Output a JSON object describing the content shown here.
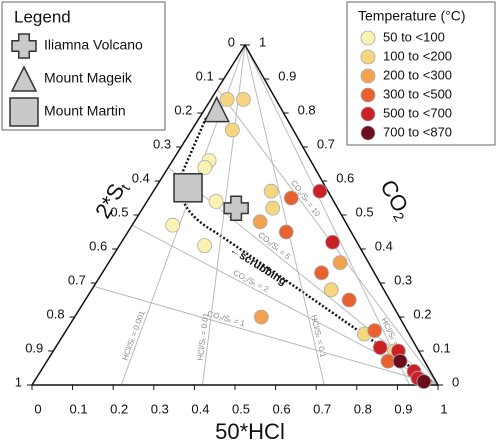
{
  "chart_data": {
    "type": "ternary",
    "axes": {
      "bottom": {
        "label": "50*HCl",
        "ticks": [
          0,
          0.1,
          0.2,
          0.3,
          0.4,
          0.5,
          0.6,
          0.7,
          0.8,
          0.9,
          1
        ]
      },
      "left": {
        "label": "2*S",
        "label_sub": "t",
        "ticks": [
          0,
          0.1,
          0.2,
          0.3,
          0.4,
          0.5,
          0.6,
          0.7,
          0.8,
          0.9,
          1
        ]
      },
      "right": {
        "label": "CO",
        "label_sub": "2",
        "ticks": [
          0,
          0.1,
          0.2,
          0.3,
          0.4,
          0.5,
          0.6,
          0.7,
          0.8,
          0.9,
          1
        ]
      }
    },
    "legend_title": "Temperature (°C)",
    "series": [
      {
        "name": "50 to <100",
        "color": "#fbf3b4",
        "hcl": [
          0.09,
          0.09,
          0.1,
          0.17,
          0.1,
          0.21
        ],
        "co2": [
          0.66,
          0.64,
          0.57,
          0.54,
          0.47,
          0.41
        ]
      },
      {
        "name": "100 to <200",
        "color": "#f6d67e",
        "hcl": [
          0.04,
          0.1,
          0.08,
          0.29,
          0.32,
          0.59,
          0.74,
          0.84
        ],
        "co2": [
          0.84,
          0.75,
          0.84,
          0.57,
          0.52,
          0.28,
          0.15,
          0.1
        ]
      },
      {
        "name": "200 to <300",
        "color": "#f3a24f",
        "hcl": [
          0.31,
          0.46,
          0.57
        ],
        "co2": [
          0.48,
          0.2,
          0.36
        ]
      },
      {
        "name": "300 to <500",
        "color": "#e8612f",
        "hcl": [
          0.35,
          0.39,
          0.54,
          0.65,
          0.76,
          0.84
        ],
        "co2": [
          0.55,
          0.45,
          0.33,
          0.25,
          0.16,
          0.07
        ]
      },
      {
        "name": "500 to <700",
        "color": "#cc1f26",
        "hcl": [
          0.41,
          0.52,
          0.8,
          0.85,
          0.92,
          0.94
        ],
        "co2": [
          0.57,
          0.42,
          0.11,
          0.1,
          0.04,
          0.02
        ]
      },
      {
        "name": "700 to <870",
        "color": "#6b0d1c",
        "hcl": [
          0.87,
          0.96
        ],
        "co2": [
          0.07,
          0.01
        ]
      }
    ],
    "volcano_legend": {
      "title": "Legend",
      "items": [
        {
          "name": "Iliamna Volcano",
          "marker": "cross",
          "hcl": 0.23,
          "co2": 0.52
        },
        {
          "name": "Mount Mageik",
          "marker": "triangle",
          "hcl": 0.03,
          "co2": 0.81
        },
        {
          "name": "Mount Martin",
          "marker": "square",
          "hcl": 0.08,
          "co2": 0.58
        }
      ]
    },
    "reference_lines": [
      {
        "label": "CO₂/Sₜ = 10",
        "co2": 0.87
      },
      {
        "label": "CO₂/Sₜ = 5",
        "co2": 0.64
      },
      {
        "label": "CO₂/Sₜ = 2",
        "co2": 0.47
      },
      {
        "label": "CO₂/Sₜ = 1",
        "co2": 0.29
      },
      {
        "label": "HCl/Sₜ = 0.001",
        "hcl": 0.22
      },
      {
        "label": "HCl/Sₜ = 0.01",
        "hcl": 0.42
      },
      {
        "label": "HCl/Sₜ = 0.1",
        "hcl": 0.72
      },
      {
        "label": "HCl/Sₜ = 1",
        "hcl": 0.93
      }
    ],
    "annotation": "←scrubbing"
  }
}
